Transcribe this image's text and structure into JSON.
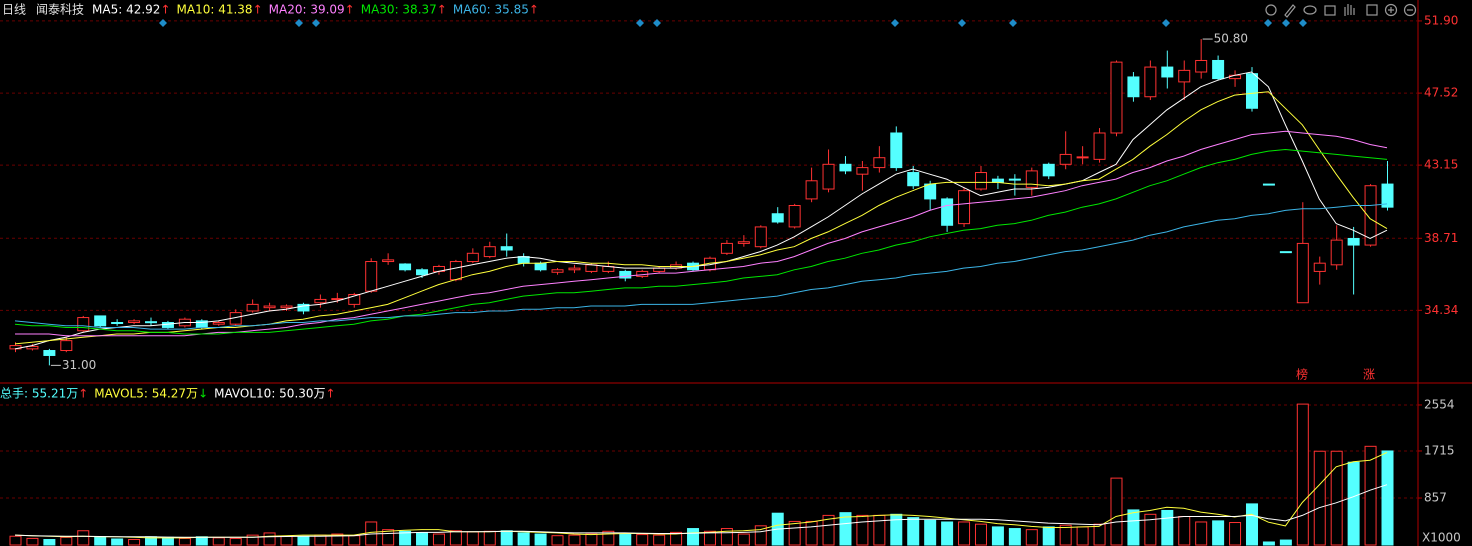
{
  "chart_data": [
    {
      "type": "candlestick",
      "title": "日线",
      "subtitle": "闻泰科技",
      "ylim": [
        29.99,
        53.17
      ],
      "yticks": [
        {
          "value": 51.9,
          "label": "51.90"
        },
        47.52,
        43.15,
        38.71,
        34.34
      ],
      "grid": true,
      "up_color": "#ff3232",
      "down_color": "#54ffff",
      "open": [
        32.0,
        32.0,
        31.9,
        31.9,
        33.1,
        34.0,
        33.6,
        33.6,
        33.65,
        33.6,
        33.4,
        33.7,
        33.5,
        33.5,
        34.3,
        34.5,
        34.5,
        34.7,
        34.8,
        35.0,
        34.7,
        35.5,
        37.3,
        37.15,
        36.8,
        36.7,
        36.2,
        37.3,
        37.6,
        38.2,
        37.6,
        37.2,
        36.65,
        36.8,
        36.7,
        36.7,
        36.7,
        36.4,
        36.7,
        36.9,
        37.2,
        36.8,
        37.8,
        38.4,
        38.2,
        40.2,
        39.4,
        41.1,
        41.7,
        43.2,
        42.6,
        43.0,
        45.1,
        42.7,
        42.0,
        41.1,
        39.6,
        41.7,
        42.3,
        42.3,
        41.8,
        43.2,
        43.2,
        43.6,
        43.5,
        45.1,
        48.5,
        47.3,
        49.1,
        48.2,
        48.8,
        49.5,
        48.4,
        48.7,
        42.0,
        37.9,
        34.8,
        36.7,
        37.1,
        38.7,
        38.3,
        42.0
      ],
      "high": [
        32.4,
        32.3,
        32.0,
        32.7,
        34.0,
        34.0,
        33.8,
        33.8,
        33.9,
        33.7,
        33.9,
        33.8,
        33.7,
        34.4,
        35.0,
        34.8,
        34.7,
        34.8,
        35.3,
        35.4,
        35.4,
        37.5,
        37.8,
        37.2,
        36.9,
        37.1,
        37.4,
        38.1,
        38.5,
        39.0,
        37.8,
        37.3,
        36.9,
        37.1,
        37.2,
        37.3,
        36.8,
        36.8,
        37.0,
        37.3,
        37.3,
        37.6,
        38.6,
        38.9,
        39.5,
        40.6,
        40.8,
        43.0,
        44.1,
        43.7,
        43.4,
        44.3,
        45.5,
        43.1,
        42.2,
        41.2,
        41.8,
        43.1,
        42.5,
        42.6,
        43.0,
        43.3,
        45.2,
        44.3,
        45.4,
        49.5,
        48.8,
        49.5,
        50.1,
        49.5,
        50.8,
        49.8,
        48.9,
        49.1,
        42.0,
        37.9,
        40.9,
        37.6,
        39.5,
        39.4,
        42.0,
        43.4
      ],
      "low": [
        31.8,
        31.9,
        31.0,
        31.8,
        33.0,
        33.3,
        33.4,
        33.5,
        33.4,
        33.2,
        33.3,
        33.2,
        33.4,
        33.4,
        34.2,
        34.3,
        34.3,
        34.1,
        34.5,
        34.8,
        34.5,
        35.4,
        37.1,
        36.7,
        36.3,
        36.5,
        36.1,
        37.2,
        37.5,
        37.6,
        37.0,
        36.7,
        36.5,
        36.6,
        36.6,
        36.6,
        36.1,
        36.3,
        36.6,
        36.8,
        36.7,
        36.7,
        37.7,
        38.2,
        38.1,
        39.6,
        39.3,
        40.9,
        41.5,
        42.6,
        41.6,
        42.7,
        42.8,
        41.7,
        40.4,
        39.1,
        39.4,
        41.6,
        41.7,
        41.3,
        41.3,
        42.3,
        42.9,
        43.2,
        43.3,
        44.9,
        47.0,
        47.1,
        47.8,
        47.1,
        48.4,
        48.3,
        47.9,
        46.4,
        42.0,
        37.9,
        34.8,
        35.9,
        36.8,
        35.3,
        38.2,
        40.4
      ],
      "close": [
        32.2,
        32.15,
        31.6,
        32.5,
        33.9,
        33.4,
        33.55,
        33.7,
        33.6,
        33.3,
        33.8,
        33.3,
        33.6,
        34.2,
        34.7,
        34.6,
        34.6,
        34.3,
        35.0,
        35.05,
        35.3,
        37.3,
        37.4,
        36.8,
        36.5,
        37.0,
        37.3,
        37.8,
        38.2,
        38.0,
        37.2,
        36.8,
        36.8,
        36.9,
        37.1,
        37.0,
        36.3,
        36.7,
        36.9,
        37.1,
        36.8,
        37.5,
        38.4,
        38.5,
        39.4,
        39.7,
        40.7,
        42.2,
        43.2,
        42.8,
        43.0,
        43.6,
        43.0,
        41.9,
        41.1,
        39.5,
        41.6,
        42.7,
        42.1,
        42.25,
        42.8,
        42.5,
        43.8,
        43.65,
        45.1,
        49.4,
        47.3,
        49.1,
        48.5,
        48.9,
        49.5,
        48.4,
        48.6,
        46.6,
        42.0,
        37.9,
        38.4,
        37.2,
        38.6,
        38.3,
        41.9,
        40.6
      ],
      "lines": [
        {
          "name": "MA5",
          "legend_label": "MA5: 42.92",
          "trend": "↑",
          "trend_color": "#ff3232",
          "color": "#ffffff",
          "values": [
            32.0,
            32.2,
            32.5,
            32.7,
            33.0,
            33.2,
            33.3,
            33.4,
            33.4,
            33.5,
            33.6,
            33.6,
            33.7,
            33.9,
            34.1,
            34.3,
            34.4,
            34.6,
            34.7,
            34.9,
            35.2,
            35.5,
            35.8,
            36.1,
            36.4,
            36.7,
            36.9,
            37.1,
            37.3,
            37.5,
            37.6,
            37.5,
            37.3,
            37.2,
            37.1,
            37.0,
            36.9,
            36.9,
            36.9,
            36.9,
            37.0,
            37.1,
            37.3,
            37.6,
            37.9,
            38.3,
            38.8,
            39.4,
            40.0,
            40.7,
            41.4,
            42.0,
            42.6,
            42.9,
            42.6,
            42.3,
            41.8,
            41.3,
            41.5,
            41.7,
            41.7,
            41.8,
            42.0,
            42.2,
            42.7,
            43.2,
            44.7,
            45.6,
            46.5,
            47.2,
            47.9,
            48.3,
            48.6,
            48.8,
            47.9,
            45.6,
            43.4,
            41.1,
            39.6,
            39.2,
            38.7,
            39.2
          ]
        },
        {
          "name": "MA10",
          "legend_label": "MA10: 41.38",
          "trend": "↑",
          "trend_color": "#ff3232",
          "color": "#ffff3c",
          "values": [
            32.3,
            32.4,
            32.5,
            32.6,
            32.7,
            32.8,
            32.9,
            32.9,
            33.0,
            33.0,
            33.1,
            33.2,
            33.3,
            33.3,
            33.4,
            33.5,
            33.7,
            33.8,
            34.0,
            34.1,
            34.3,
            34.5,
            34.7,
            35.1,
            35.5,
            35.9,
            36.2,
            36.5,
            36.7,
            37.0,
            37.2,
            37.2,
            37.3,
            37.3,
            37.2,
            37.2,
            37.1,
            37.1,
            37.0,
            37.0,
            37.0,
            37.2,
            37.3,
            37.5,
            37.7,
            38.0,
            38.2,
            38.7,
            39.1,
            39.6,
            40.1,
            40.7,
            41.2,
            41.6,
            42.0,
            42.1,
            42.1,
            42.1,
            42.1,
            42.0,
            42.0,
            41.9,
            42.0,
            42.2,
            42.3,
            42.9,
            43.5,
            44.3,
            45.0,
            45.8,
            46.5,
            47.0,
            47.4,
            47.5,
            47.6,
            46.6,
            45.6,
            44.1,
            42.6,
            41.2,
            39.9,
            39.3
          ]
        },
        {
          "name": "MA20",
          "legend_label": "MA20: 39.09",
          "trend": "↑",
          "trend_color": "#ff3232",
          "color": "#ff80ff",
          "values": [
            32.9,
            32.9,
            32.9,
            32.8,
            32.8,
            32.8,
            32.8,
            32.8,
            32.8,
            32.8,
            32.8,
            32.9,
            33.0,
            33.0,
            33.1,
            33.2,
            33.3,
            33.5,
            33.6,
            33.8,
            33.9,
            34.1,
            34.3,
            34.5,
            34.7,
            34.9,
            35.1,
            35.3,
            35.4,
            35.6,
            35.8,
            35.9,
            36.0,
            36.1,
            36.2,
            36.3,
            36.4,
            36.5,
            36.6,
            36.6,
            36.7,
            36.8,
            36.9,
            37.0,
            37.2,
            37.3,
            37.6,
            38.0,
            38.4,
            38.7,
            39.1,
            39.4,
            39.7,
            40.0,
            40.4,
            40.7,
            40.8,
            40.9,
            41.0,
            41.1,
            41.2,
            41.4,
            41.6,
            41.9,
            42.1,
            42.3,
            42.7,
            43.0,
            43.4,
            43.7,
            44.1,
            44.4,
            44.7,
            45.0,
            45.1,
            45.2,
            45.1,
            45.0,
            44.9,
            44.7,
            44.4,
            44.2
          ]
        },
        {
          "name": "MA30",
          "legend_label": "MA30: 38.37",
          "trend": "↑",
          "trend_color": "#ff3232",
          "color": "#00e600",
          "values": [
            33.5,
            33.4,
            33.4,
            33.3,
            33.3,
            33.2,
            33.1,
            33.1,
            33.0,
            33.0,
            32.9,
            32.9,
            32.9,
            33.0,
            33.0,
            33.0,
            33.1,
            33.2,
            33.3,
            33.4,
            33.5,
            33.7,
            33.8,
            34.0,
            34.1,
            34.3,
            34.5,
            34.7,
            34.8,
            35.0,
            35.2,
            35.3,
            35.4,
            35.4,
            35.5,
            35.6,
            35.7,
            35.7,
            35.8,
            35.8,
            35.9,
            36.0,
            36.1,
            36.3,
            36.4,
            36.5,
            36.8,
            37.0,
            37.3,
            37.5,
            37.8,
            38.0,
            38.3,
            38.5,
            38.8,
            39.0,
            39.2,
            39.3,
            39.5,
            39.6,
            39.8,
            40.1,
            40.3,
            40.6,
            40.8,
            41.1,
            41.5,
            41.9,
            42.2,
            42.6,
            43.0,
            43.3,
            43.5,
            43.8,
            44.0,
            44.1,
            44.0,
            43.9,
            43.8,
            43.7,
            43.6,
            43.5
          ]
        },
        {
          "name": "MA60",
          "legend_label": "MA60: 35.85",
          "trend": "↑",
          "trend_color": "#ff3232",
          "color": "#3cb4e6",
          "values": [
            33.7,
            33.6,
            33.5,
            33.4,
            33.4,
            33.3,
            33.3,
            33.3,
            33.2,
            33.2,
            33.2,
            33.3,
            33.3,
            33.4,
            33.4,
            33.5,
            33.6,
            33.6,
            33.7,
            33.7,
            33.8,
            33.9,
            33.9,
            34.0,
            34.0,
            34.1,
            34.2,
            34.2,
            34.3,
            34.3,
            34.4,
            34.4,
            34.5,
            34.5,
            34.6,
            34.6,
            34.6,
            34.7,
            34.7,
            34.7,
            34.7,
            34.8,
            34.9,
            35.0,
            35.1,
            35.2,
            35.4,
            35.6,
            35.7,
            35.9,
            36.1,
            36.2,
            36.3,
            36.5,
            36.6,
            36.7,
            36.9,
            37.0,
            37.2,
            37.3,
            37.5,
            37.7,
            37.9,
            38.0,
            38.2,
            38.4,
            38.6,
            38.9,
            39.1,
            39.4,
            39.6,
            39.8,
            39.9,
            40.1,
            40.2,
            40.4,
            40.5,
            40.5,
            40.6,
            40.7,
            40.7,
            40.8
          ]
        }
      ],
      "annotations": [
        {
          "text": "50.80",
          "value": 50.8,
          "field": "high"
        },
        {
          "text": "31.00",
          "value": 31.0,
          "field": "low"
        }
      ],
      "event_labels": [
        "榜",
        "涨"
      ]
    },
    {
      "type": "bar",
      "legend_label": "总手: 55.21万",
      "trend": "↑",
      "trend_color": "#ff3232",
      "color": "#54ffff",
      "ylim": [
        0,
        2955
      ],
      "yticks": [
        857,
        1715,
        2554
      ],
      "unit_label": "X1000",
      "grid": true,
      "values": [
        160,
        120,
        100,
        140,
        260,
        150,
        110,
        100,
        150,
        140,
        120,
        150,
        130,
        120,
        180,
        220,
        160,
        150,
        180,
        200,
        170,
        420,
        280,
        250,
        220,
        200,
        260,
        240,
        250,
        260,
        220,
        200,
        170,
        180,
        200,
        250,
        200,
        190,
        180,
        230,
        300,
        250,
        300,
        200,
        350,
        580,
        430,
        430,
        540,
        590,
        540,
        540,
        560,
        500,
        450,
        420,
        420,
        380,
        330,
        300,
        280,
        330,
        360,
        330,
        380,
        1220,
        640,
        560,
        630,
        520,
        420,
        440,
        410,
        750,
        55,
        90,
        2570,
        1710,
        1710,
        1510,
        1800,
        1715
      ],
      "lines": [
        {
          "name": "MAVOL5",
          "legend_label": "MAVOL5: 54.27万",
          "trend": "↓",
          "trend_color": "#00e600",
          "color": "#ffff3c",
          "values": [
            180,
            170,
            160,
            150,
            160,
            150,
            150,
            140,
            130,
            130,
            130,
            140,
            140,
            140,
            140,
            160,
            170,
            180,
            180,
            180,
            180,
            230,
            250,
            270,
            280,
            280,
            240,
            240,
            240,
            250,
            240,
            230,
            220,
            200,
            190,
            200,
            210,
            210,
            200,
            200,
            220,
            230,
            250,
            260,
            280,
            360,
            390,
            420,
            470,
            510,
            520,
            540,
            550,
            540,
            520,
            490,
            460,
            430,
            390,
            370,
            340,
            320,
            320,
            330,
            340,
            520,
            590,
            630,
            690,
            670,
            600,
            560,
            510,
            560,
            415,
            349,
            775,
            1095,
            1427,
            1518,
            1546,
            1689
          ]
        },
        {
          "name": "MAVOL10",
          "legend_label": "MAVOL10: 50.30万",
          "trend": "↑",
          "trend_color": "#ff3232",
          "color": "#ffffff",
          "values": [
            180,
            170,
            165,
            160,
            160,
            155,
            150,
            150,
            150,
            145,
            140,
            140,
            140,
            140,
            140,
            150,
            155,
            160,
            160,
            165,
            170,
            200,
            210,
            220,
            230,
            230,
            240,
            240,
            245,
            250,
            250,
            240,
            230,
            220,
            220,
            220,
            220,
            215,
            210,
            210,
            215,
            220,
            225,
            230,
            240,
            290,
            310,
            330,
            360,
            390,
            420,
            440,
            460,
            470,
            470,
            470,
            470,
            470,
            460,
            440,
            420,
            400,
            390,
            380,
            370,
            420,
            440,
            460,
            490,
            520,
            520,
            520,
            520,
            540,
            480,
            440,
            540,
            680,
            770,
            880,
            1000,
            1100
          ]
        }
      ]
    }
  ]
}
